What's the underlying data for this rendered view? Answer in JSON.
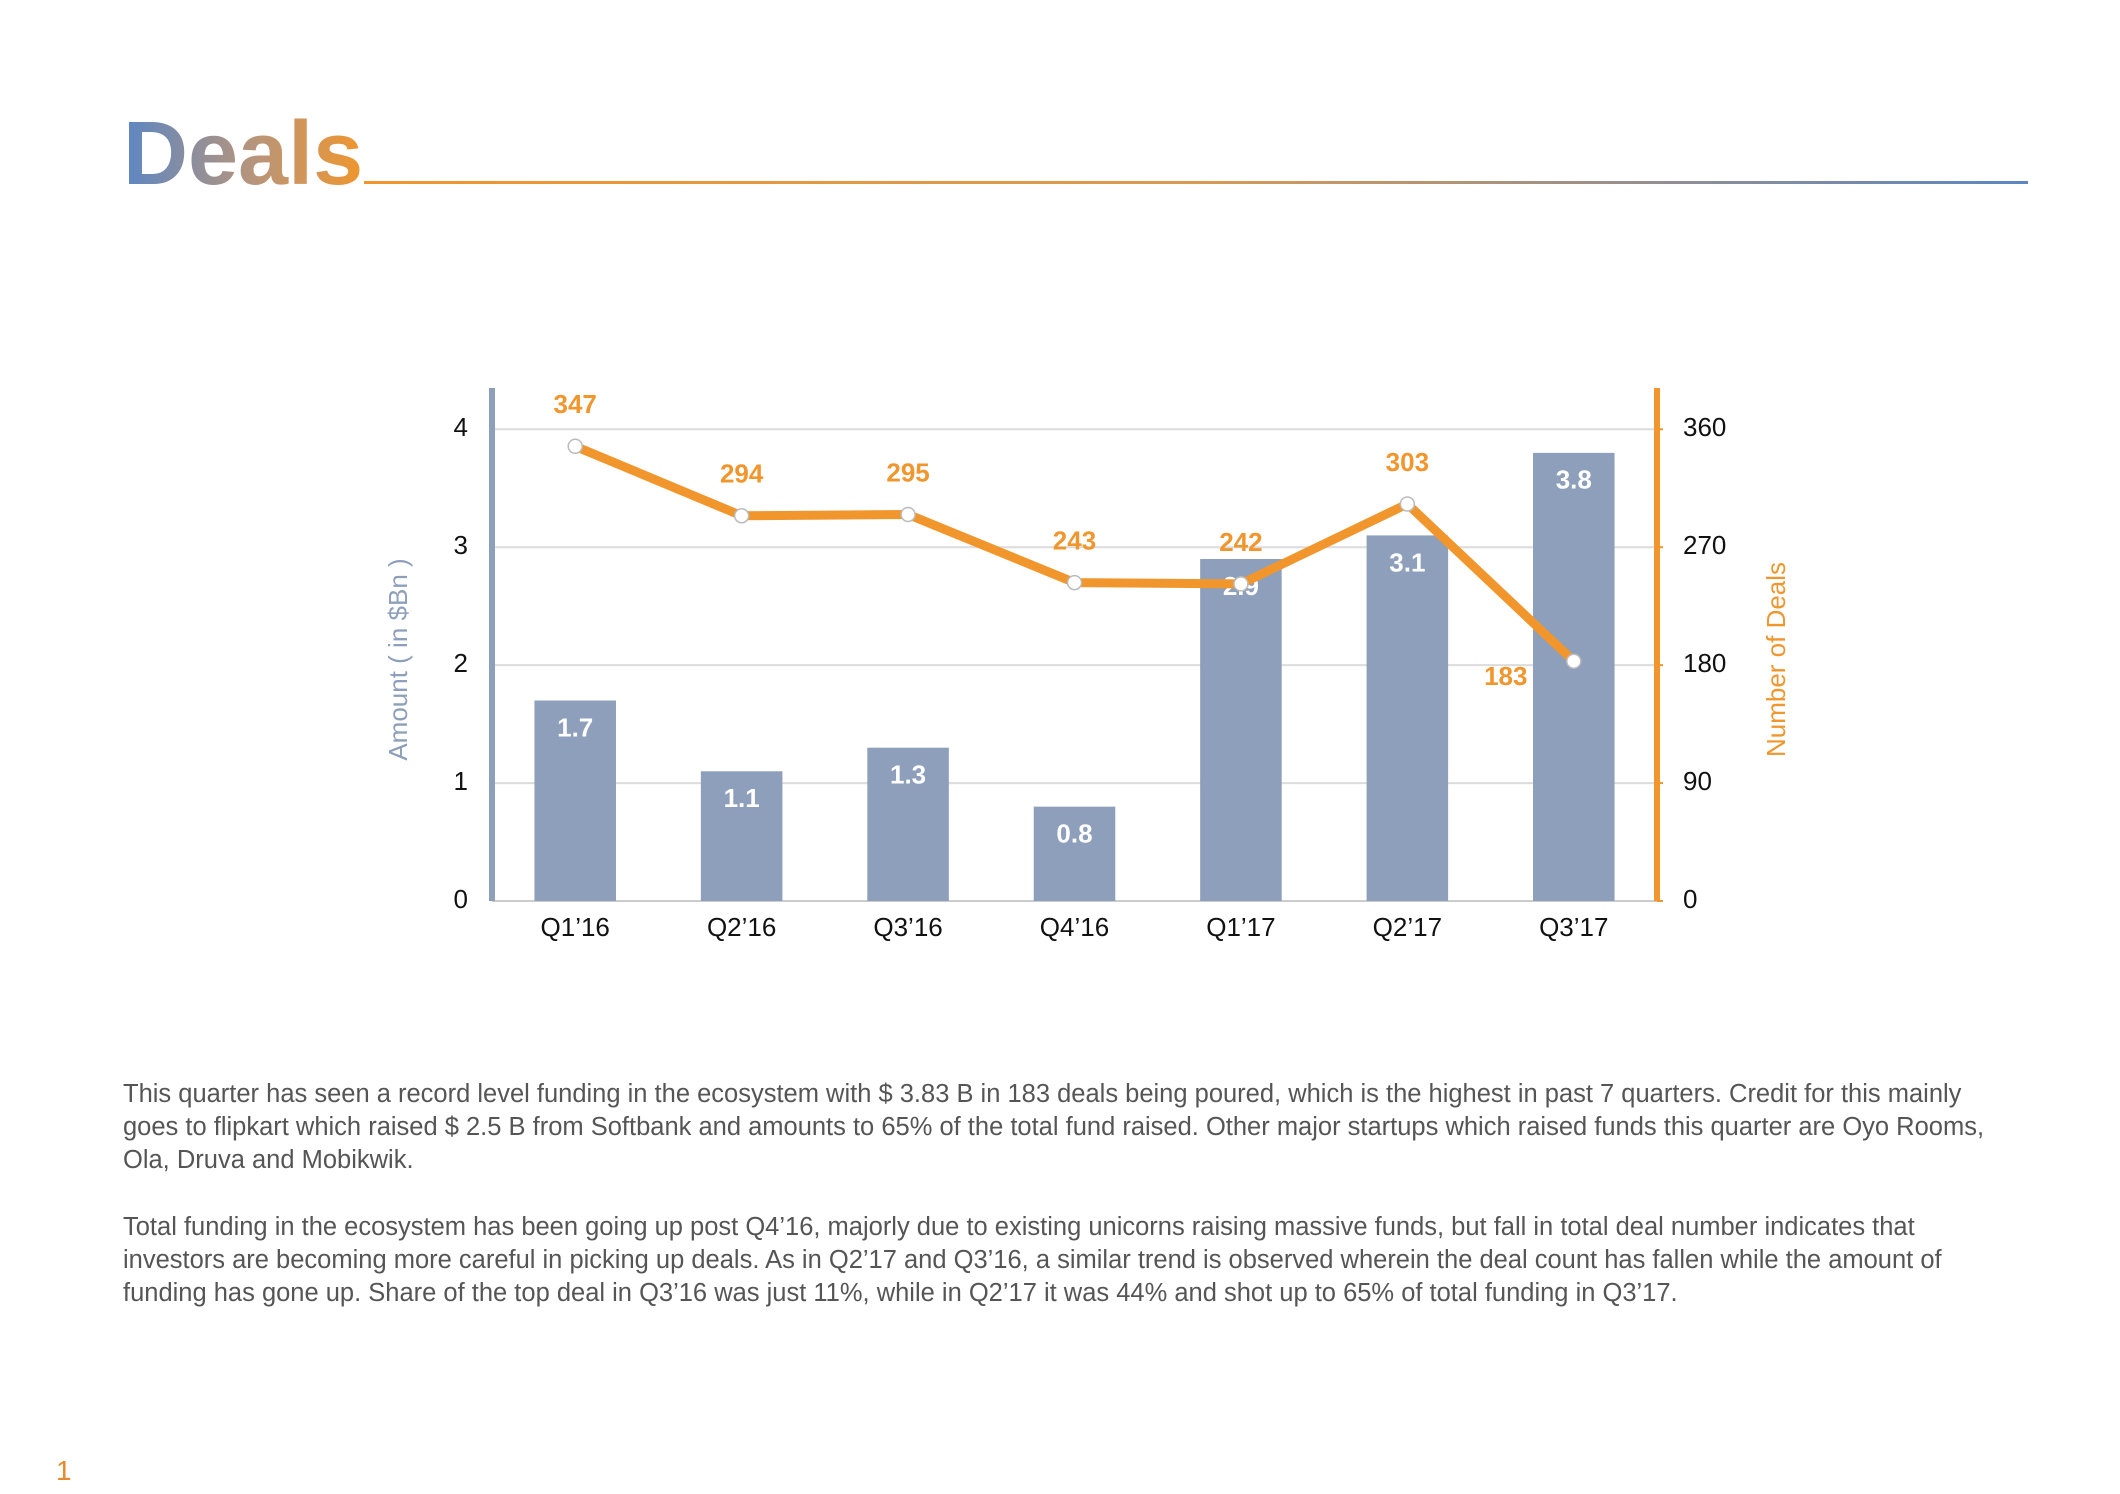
{
  "header": {
    "title": "Deals"
  },
  "chart_data": {
    "type": "bar",
    "categories": [
      "Q1’16",
      "Q2’16",
      "Q3’16",
      "Q4’16",
      "Q1’17",
      "Q2’17",
      "Q3’17"
    ],
    "series": [
      {
        "name": "Amount",
        "type": "bar",
        "color": "#8e9fbb",
        "values": [
          1.7,
          1.1,
          1.3,
          0.8,
          2.9,
          3.1,
          3.8
        ]
      },
      {
        "name": "Number of Deals",
        "type": "line",
        "axis": "y2",
        "color": "#f0962d",
        "values": [
          347,
          294,
          295,
          243,
          242,
          303,
          183
        ]
      }
    ],
    "y_label": "Amount ( in $Bn )",
    "y2_label": "Number of Deals",
    "ylim": [
      0,
      4.35
    ],
    "yticks": [
      0,
      1,
      2,
      3,
      4
    ],
    "y2lim": [
      0,
      391.5
    ],
    "y2ticks": [
      0,
      90,
      180,
      270,
      360
    ],
    "grid": true
  },
  "paragraphs": [
    "This quarter has seen a record level funding in the ecosystem with $ 3.83 B in 183 deals being poured, which is the highest in past 7 quarters. Credit for this mainly goes to flipkart which raised $ 2.5 B from Softbank and amounts to 65% of the total fund raised. Other major startups which raised funds this quarter are Oyo Rooms, Ola, Druva and Mobikwik.",
    "Total funding in the ecosystem has been going up post Q4’16, majorly due to existing unicorns raising massive funds, but fall in total deal number indicates that investors are becoming more careful in picking up deals. As in Q2’17 and Q3’16, a similar trend is observed wherein the deal count has fallen while the amount of funding has gone up. Share of the top deal in Q3’16 was just 11%, while in Q2’17 it was 44% and shot up to 65% of total funding in Q3’17."
  ],
  "page_number": "1"
}
